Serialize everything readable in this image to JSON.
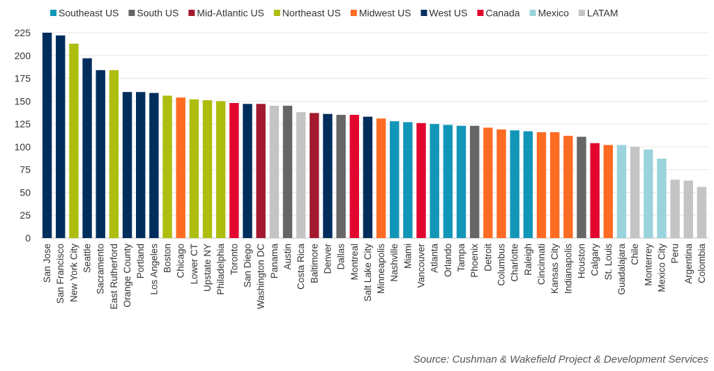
{
  "chart_data": {
    "type": "bar",
    "ylim": [
      0,
      225
    ],
    "yticks": [
      0,
      25,
      50,
      75,
      100,
      125,
      150,
      175,
      200,
      225
    ],
    "grid": true,
    "legend_position": "top",
    "regions": [
      {
        "name": "Southeast US",
        "color": "#1296B8"
      },
      {
        "name": "South US",
        "color": "#666666"
      },
      {
        "name": "Mid-Atlantic US",
        "color": "#A3192F"
      },
      {
        "name": "Northeast US",
        "color": "#AEBE0E"
      },
      {
        "name": "Midwest US",
        "color": "#FF6B22"
      },
      {
        "name": "West US",
        "color": "#002E5C"
      },
      {
        "name": "Canada",
        "color": "#E2062F"
      },
      {
        "name": "Mexico",
        "color": "#9BD3DD"
      },
      {
        "name": "LATAM",
        "color": "#C4C4C4"
      }
    ],
    "bars": [
      {
        "city": "San Jose",
        "region": "West US",
        "value": 225
      },
      {
        "city": "San Francisco",
        "region": "West US",
        "value": 222
      },
      {
        "city": "New York City",
        "region": "Northeast US",
        "value": 213
      },
      {
        "city": "Seattle",
        "region": "West US",
        "value": 197
      },
      {
        "city": "Sacramento",
        "region": "West US",
        "value": 184
      },
      {
        "city": "East Rutherford",
        "region": "Northeast US",
        "value": 184
      },
      {
        "city": "Orange County",
        "region": "West US",
        "value": 160
      },
      {
        "city": "Portland",
        "region": "West US",
        "value": 160
      },
      {
        "city": "Los Angeles",
        "region": "West US",
        "value": 159
      },
      {
        "city": "Boston",
        "region": "Northeast US",
        "value": 156
      },
      {
        "city": "Chicago",
        "region": "Midwest US",
        "value": 154
      },
      {
        "city": "Lower CT",
        "region": "Northeast US",
        "value": 152
      },
      {
        "city": "Upstate NY",
        "region": "Northeast US",
        "value": 151
      },
      {
        "city": "Philadelphia",
        "region": "Northeast US",
        "value": 150
      },
      {
        "city": "Toronto",
        "region": "Canada",
        "value": 148
      },
      {
        "city": "San Diego",
        "region": "West US",
        "value": 147
      },
      {
        "city": "Washington DC",
        "region": "Mid-Atlantic US",
        "value": 147
      },
      {
        "city": "Panama",
        "region": "LATAM",
        "value": 145
      },
      {
        "city": "Austin",
        "region": "South US",
        "value": 145
      },
      {
        "city": "Costa Rica",
        "region": "LATAM",
        "value": 138
      },
      {
        "city": "Baltimore",
        "region": "Mid-Atlantic US",
        "value": 137
      },
      {
        "city": "Denver",
        "region": "West US",
        "value": 136
      },
      {
        "city": "Dallas",
        "region": "South US",
        "value": 135
      },
      {
        "city": "Montreal",
        "region": "Canada",
        "value": 135
      },
      {
        "city": "Salt Lake City",
        "region": "West US",
        "value": 133
      },
      {
        "city": "Minneapolis",
        "region": "Midwest US",
        "value": 131
      },
      {
        "city": "Nashville",
        "region": "Southeast US",
        "value": 128
      },
      {
        "city": "Miami",
        "region": "Southeast US",
        "value": 127
      },
      {
        "city": "Vancouver",
        "region": "Canada",
        "value": 126
      },
      {
        "city": "Atlanta",
        "region": "Southeast US",
        "value": 125
      },
      {
        "city": "Orlando",
        "region": "Southeast US",
        "value": 124
      },
      {
        "city": "Tampa",
        "region": "Southeast US",
        "value": 123
      },
      {
        "city": "Phoenix",
        "region": "South US",
        "value": 123
      },
      {
        "city": "Detroit",
        "region": "Midwest US",
        "value": 121
      },
      {
        "city": "Columbus",
        "region": "Midwest US",
        "value": 119
      },
      {
        "city": "Charlotte",
        "region": "Southeast US",
        "value": 118
      },
      {
        "city": "Raleigh",
        "region": "Southeast US",
        "value": 117
      },
      {
        "city": "Cincinnati",
        "region": "Midwest US",
        "value": 116
      },
      {
        "city": "Kansas City",
        "region": "Midwest US",
        "value": 116
      },
      {
        "city": "Indianapolis",
        "region": "Midwest US",
        "value": 112
      },
      {
        "city": "Houston",
        "region": "South US",
        "value": 111
      },
      {
        "city": "Calgary",
        "region": "Canada",
        "value": 104
      },
      {
        "city": "St. Louis",
        "region": "Midwest US",
        "value": 102
      },
      {
        "city": "Guadalajara",
        "region": "Mexico",
        "value": 102
      },
      {
        "city": "Chile",
        "region": "LATAM",
        "value": 100
      },
      {
        "city": "Monterrey",
        "region": "Mexico",
        "value": 97
      },
      {
        "city": "Mexico City",
        "region": "Mexico",
        "value": 87
      },
      {
        "city": "Peru",
        "region": "LATAM",
        "value": 64
      },
      {
        "city": "Argentina",
        "region": "LATAM",
        "value": 63
      },
      {
        "city": "Colombia",
        "region": "LATAM",
        "value": 56
      }
    ]
  },
  "source": "Source: Cushman & Wakefield Project & Development Services"
}
